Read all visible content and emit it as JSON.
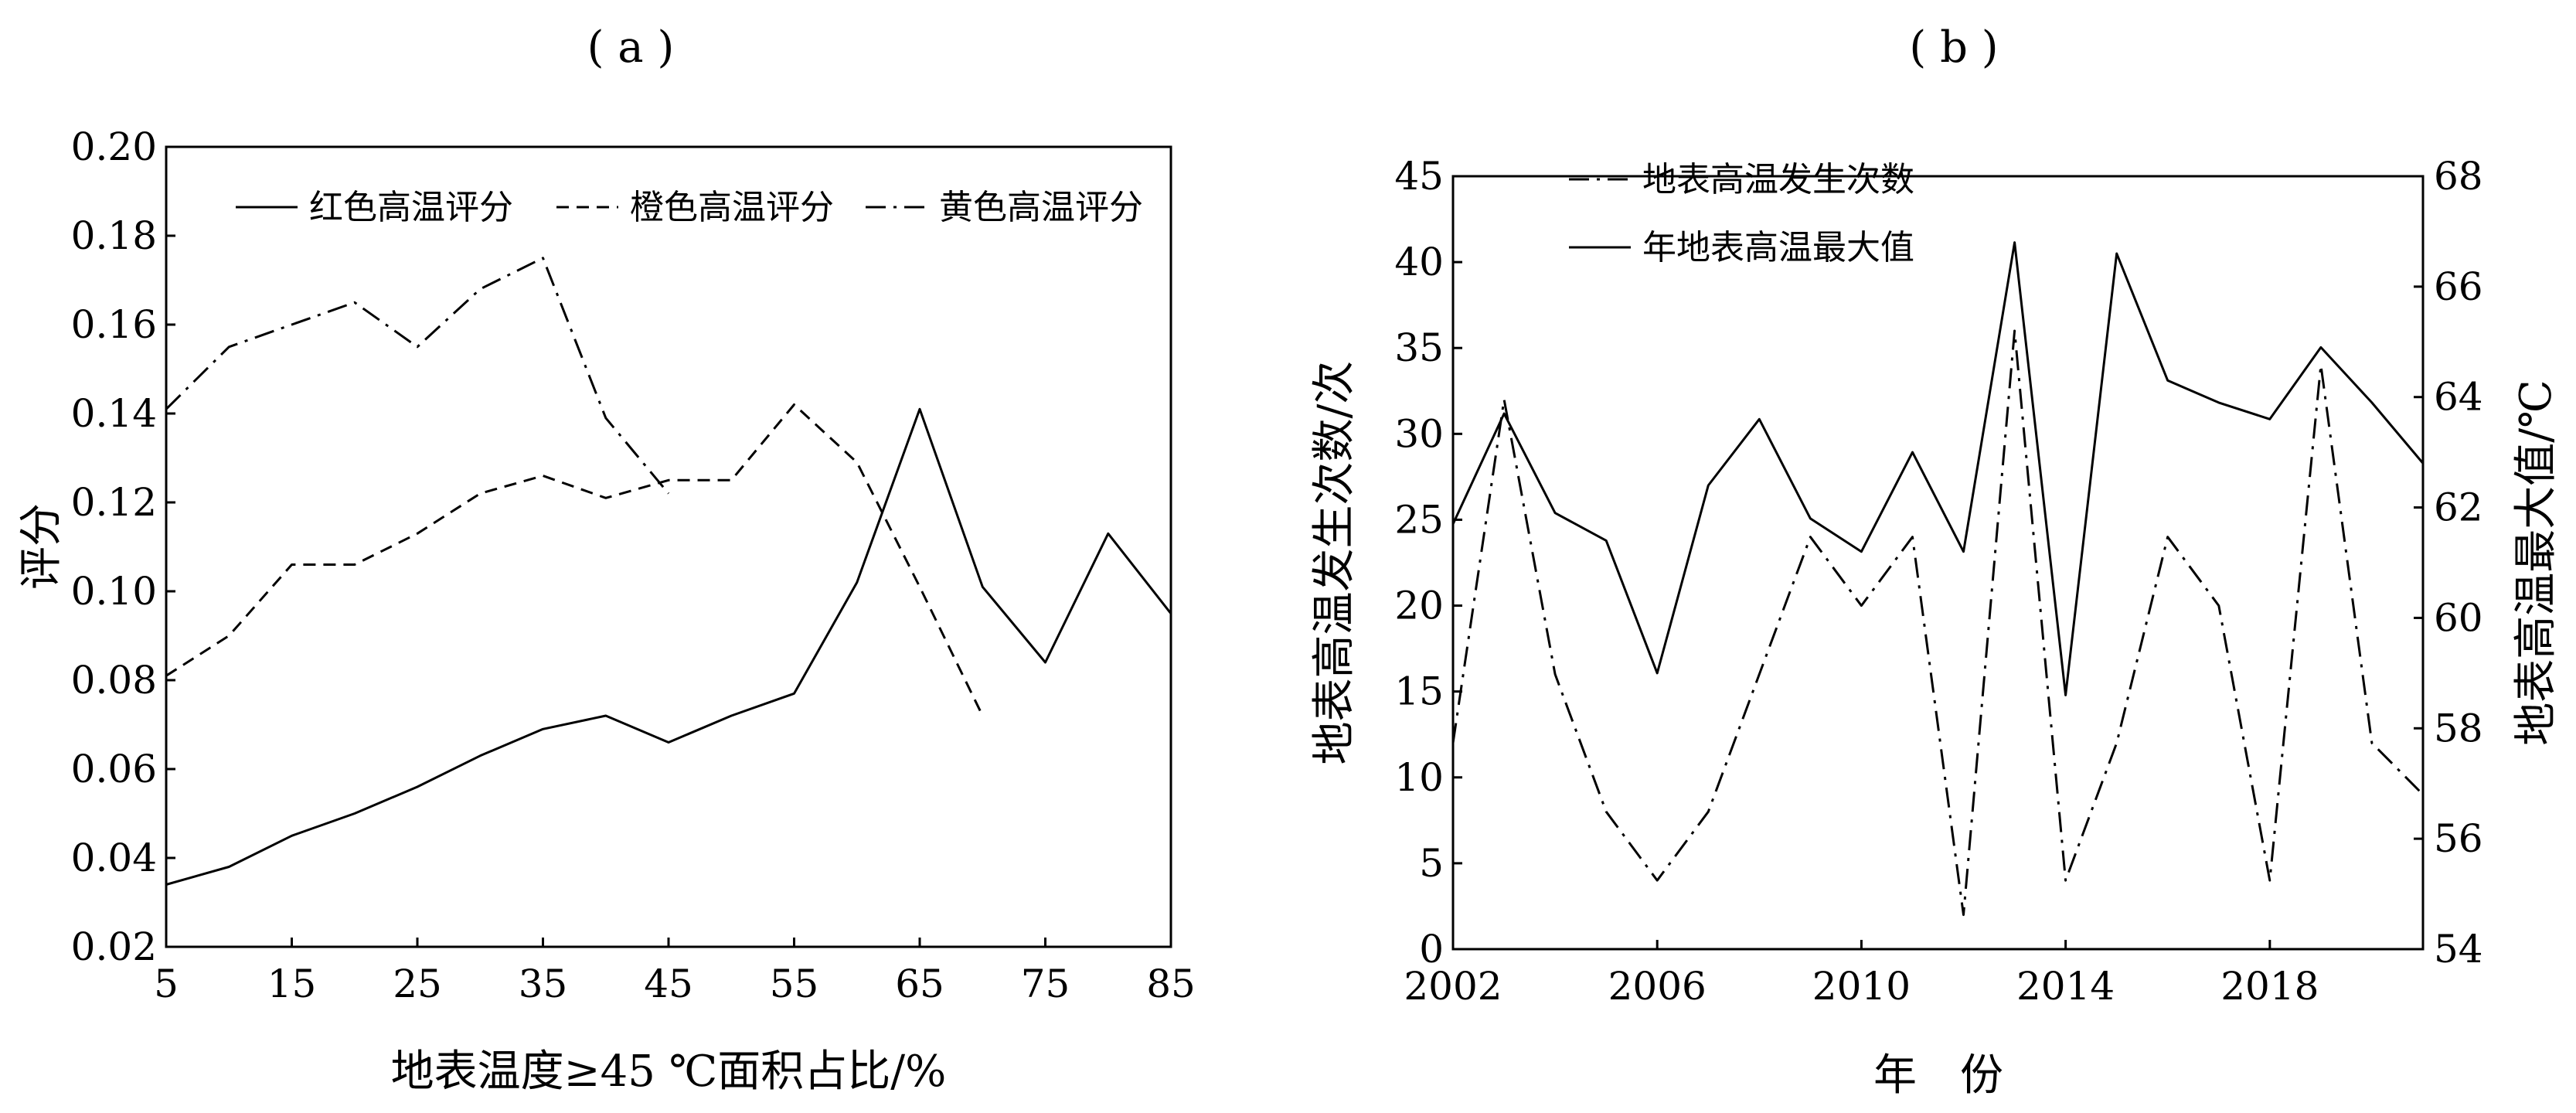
{
  "chart_data": [
    {
      "type": "line",
      "panel_label": "( a )",
      "xlabel": "地表温度≥45 ℃面积占比/%",
      "ylabel": "评分",
      "xlim": [
        5,
        85
      ],
      "ylim": [
        0.02,
        0.2
      ],
      "xticks": [
        "5",
        "15",
        "25",
        "35",
        "45",
        "55",
        "65",
        "75",
        "85"
      ],
      "yticks": [
        "0.02",
        "0.04",
        "0.06",
        "0.08",
        "0.10",
        "0.12",
        "0.14",
        "0.16",
        "0.18",
        "0.20"
      ],
      "legend_position": "top",
      "grid": false,
      "series": [
        {
          "name": "红色高温评分",
          "style": "solid",
          "x": [
            5,
            10,
            15,
            20,
            25,
            30,
            35,
            40,
            45,
            50,
            55,
            60,
            65,
            70,
            75,
            80,
            85
          ],
          "y": [
            0.034,
            0.038,
            0.045,
            0.05,
            0.056,
            0.063,
            0.069,
            0.072,
            0.066,
            0.072,
            0.077,
            0.102,
            0.141,
            0.101,
            0.084,
            0.113,
            0.095
          ]
        },
        {
          "name": "橙色高温评分",
          "style": "dashed",
          "x": [
            5,
            10,
            15,
            20,
            25,
            30,
            35,
            40,
            45,
            50,
            55,
            60,
            65,
            70
          ],
          "y": [
            0.081,
            0.09,
            0.106,
            0.106,
            0.113,
            0.122,
            0.126,
            0.121,
            0.125,
            0.125,
            0.142,
            0.129,
            0.101,
            0.072
          ]
        },
        {
          "name": "黄色高温评分",
          "style": "dashdot",
          "x": [
            5,
            10,
            15,
            20,
            25,
            30,
            35,
            40,
            45
          ],
          "y": [
            0.141,
            0.155,
            0.16,
            0.165,
            0.155,
            0.168,
            0.175,
            0.139,
            0.122
          ]
        }
      ]
    },
    {
      "type": "line",
      "panel_label": "( b )",
      "xlabel": "年　份",
      "ylabel_left": "地表高温发生次数/次",
      "ylabel_right": "地表高温最大值/℃",
      "xlim": [
        2002,
        2021
      ],
      "ylim_left": [
        0,
        45
      ],
      "ylim_right": [
        54,
        68
      ],
      "xticks": [
        "2002",
        "2006",
        "2010",
        "2014",
        "2018"
      ],
      "yticks_left": [
        "0",
        "5",
        "10",
        "15",
        "20",
        "25",
        "30",
        "35",
        "40",
        "45"
      ],
      "yticks_right": [
        "54",
        "56",
        "58",
        "60",
        "62",
        "64",
        "66",
        "68"
      ],
      "legend_position": "top-left",
      "grid": false,
      "series": [
        {
          "name": "地表高温发生次数",
          "style": "dashdot",
          "axis": "left",
          "x": [
            2002,
            2003,
            2004,
            2005,
            2006,
            2007,
            2008,
            2009,
            2010,
            2011,
            2012,
            2013,
            2014,
            2015,
            2016,
            2017,
            2018,
            2019,
            2020,
            2021
          ],
          "y": [
            12,
            32,
            16,
            8,
            4,
            8,
            16,
            24,
            20,
            24,
            2,
            36,
            4,
            12,
            24,
            20,
            4,
            34,
            12,
            9
          ]
        },
        {
          "name": "年地表高温最大值",
          "style": "solid",
          "axis": "right",
          "x": [
            2002,
            2003,
            2004,
            2005,
            2006,
            2007,
            2008,
            2009,
            2010,
            2011,
            2012,
            2013,
            2014,
            2015,
            2016,
            2017,
            2018,
            2019,
            2020,
            2021
          ],
          "y": [
            61.7,
            63.7,
            61.9,
            61.4,
            59.0,
            62.4,
            63.6,
            61.8,
            61.2,
            63.0,
            61.2,
            66.8,
            58.6,
            66.6,
            64.3,
            63.9,
            63.6,
            64.9,
            63.9,
            62.8
          ]
        }
      ]
    }
  ]
}
